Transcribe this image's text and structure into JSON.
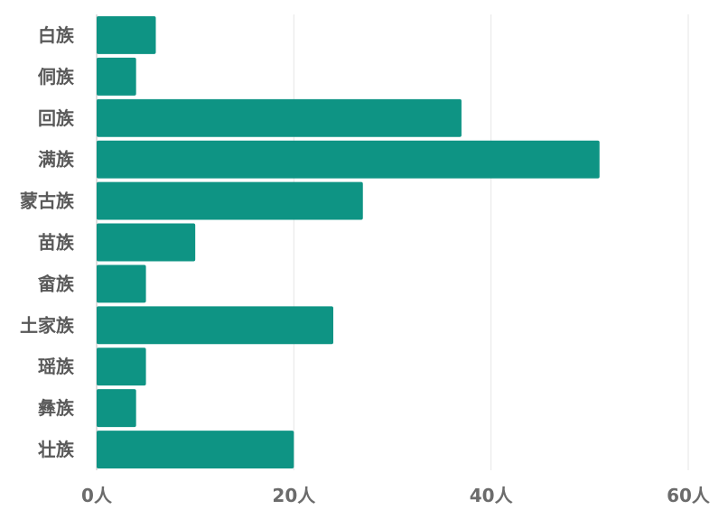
{
  "chart_data": {
    "type": "bar",
    "orientation": "horizontal",
    "categories": [
      "白族",
      "侗族",
      "回族",
      "满族",
      "蒙古族",
      "苗族",
      "畲族",
      "土家族",
      "瑶族",
      "彝族",
      "壮族"
    ],
    "values": [
      6,
      4,
      37,
      51,
      27,
      10,
      5,
      24,
      5,
      4,
      20
    ],
    "xlim": [
      0,
      60
    ],
    "x_ticks": [
      0,
      20,
      40,
      60
    ],
    "x_tick_labels": [
      "0人",
      "20人",
      "40人",
      "60人"
    ],
    "grid": "vertical",
    "bar_color": "#0e9484",
    "title": "",
    "xlabel": "",
    "ylabel": ""
  }
}
